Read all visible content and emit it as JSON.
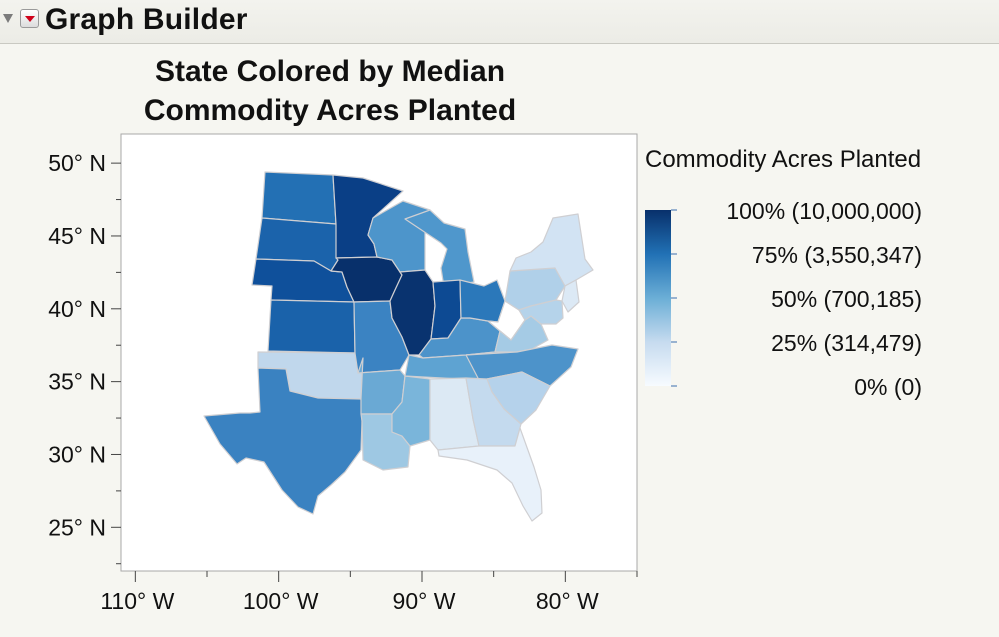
{
  "header": {
    "title": "Graph Builder"
  },
  "chart_data": {
    "type": "choropleth map",
    "title_lines": [
      "State Colored by Median",
      "Commodity Acres Planted"
    ],
    "x_ticks": [
      "110° W",
      "100° W",
      "90° W",
      "80° W"
    ],
    "y_ticks": [
      "50° N",
      "45° N",
      "40° N",
      "35° N",
      "30° N",
      "25° N"
    ],
    "xlim": [
      -111,
      -75
    ],
    "ylim": [
      22,
      52
    ],
    "legend": {
      "title": "Commodity Acres Planted",
      "placement": "right",
      "entries": [
        {
          "label": "100% (10,000,000)",
          "color": "#08306b"
        },
        {
          "label": "75% (3,550,347)",
          "color": "#2171b5"
        },
        {
          "label": "50% (700,185)",
          "color": "#6baed6"
        },
        {
          "label": "25% (314,479)",
          "color": "#c6dbef"
        },
        {
          "label": "0% (0)",
          "color": "#f7fbff"
        }
      ]
    },
    "states": [
      {
        "name": "ND",
        "color": "#2370b4"
      },
      {
        "name": "SD",
        "color": "#1b63ab"
      },
      {
        "name": "NE",
        "color": "#0f509b"
      },
      {
        "name": "KS",
        "color": "#1a62aa"
      },
      {
        "name": "OK",
        "color": "#c0d7ec"
      },
      {
        "name": "TX",
        "color": "#3a82c1"
      },
      {
        "name": "MN",
        "color": "#0a3f86"
      },
      {
        "name": "IA",
        "color": "#08306b"
      },
      {
        "name": "MO",
        "color": "#3b83c2"
      },
      {
        "name": "AR",
        "color": "#6aa9d4"
      },
      {
        "name": "LA",
        "color": "#9ec8e3"
      },
      {
        "name": "WI",
        "color": "#4d95cb"
      },
      {
        "name": "IL",
        "color": "#09336f"
      },
      {
        "name": "MS",
        "color": "#7ab5da"
      },
      {
        "name": "MI",
        "color": "#4f97cc"
      },
      {
        "name": "IN",
        "color": "#0d4a93"
      },
      {
        "name": "KY",
        "color": "#4c93ca"
      },
      {
        "name": "TN",
        "color": "#5ea3d2"
      },
      {
        "name": "AL",
        "color": "#dce9f4"
      },
      {
        "name": "OH",
        "color": "#2b78ba"
      },
      {
        "name": "WV",
        "color": "#ffffff"
      },
      {
        "name": "VA",
        "color": "#a5cbe5"
      },
      {
        "name": "NC",
        "color": "#4d93ca"
      },
      {
        "name": "SC",
        "color": "#b5d2eb"
      },
      {
        "name": "GA",
        "color": "#c4daee"
      },
      {
        "name": "FL",
        "color": "#e8f1fa"
      },
      {
        "name": "PA",
        "color": "#b0d0e9"
      },
      {
        "name": "NY",
        "color": "#d2e3f3"
      },
      {
        "name": "NJ",
        "color": "#dce9f5"
      },
      {
        "name": "MD",
        "color": "#b5d3ea"
      }
    ]
  }
}
